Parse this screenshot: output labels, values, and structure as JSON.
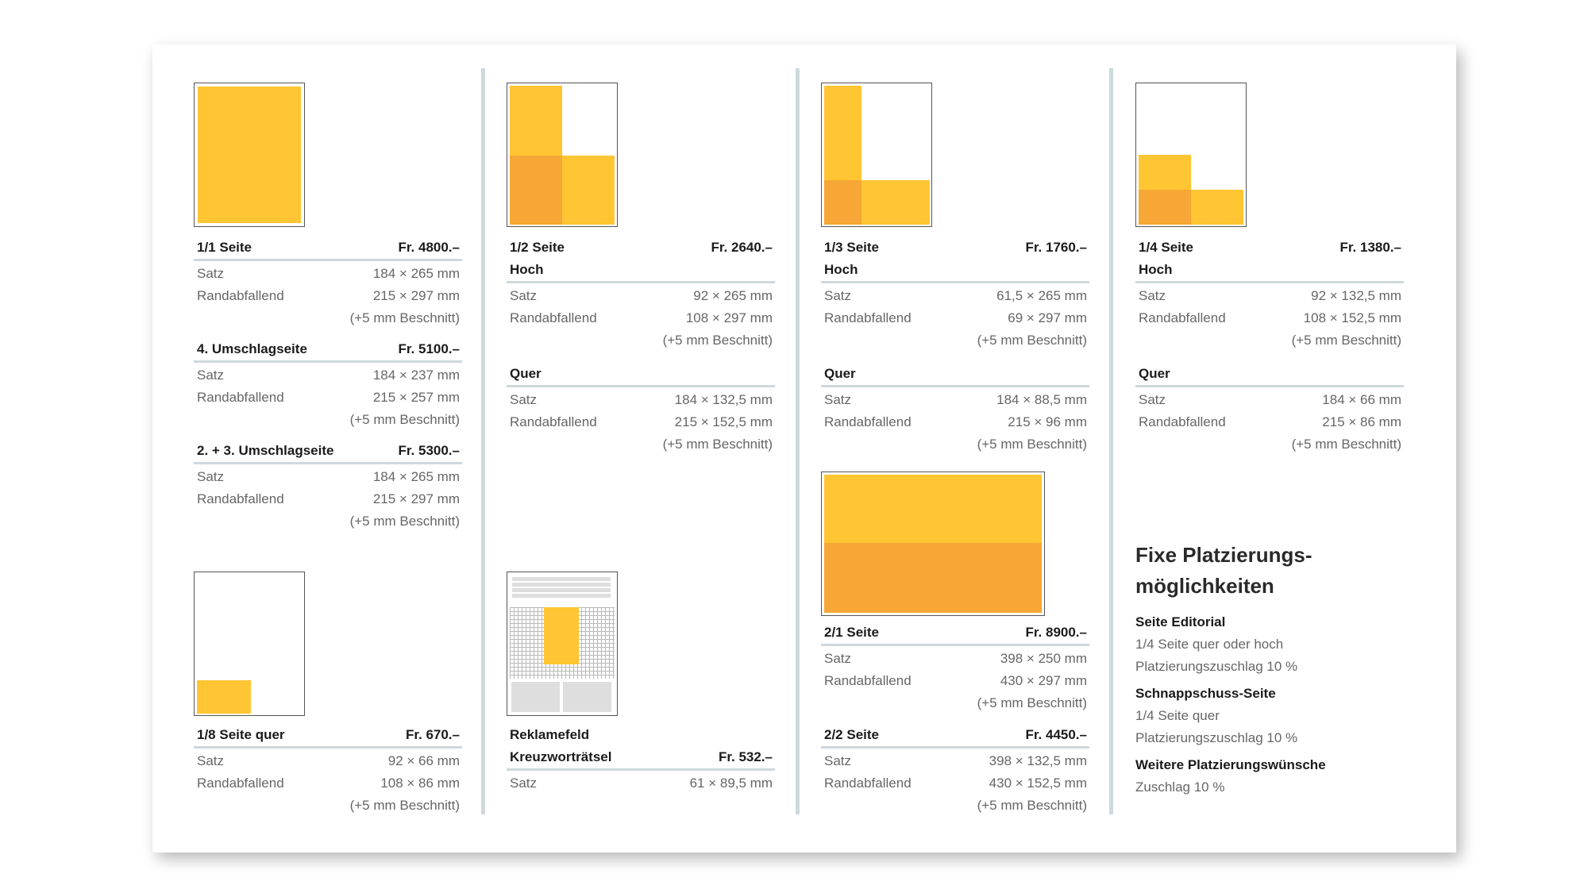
{
  "col1": {
    "full": {
      "title": "1/1 Seite",
      "price": "Fr. 4800.–",
      "rows": [
        {
          "label": "Satz",
          "value": "184 × 265 mm"
        },
        {
          "label": "Randabfallend",
          "value": "215 × 297 mm"
        }
      ],
      "note": "(+5 mm Beschnitt)"
    },
    "back": {
      "title": "4. Umschlagseite",
      "price": "Fr. 5100.–",
      "rows": [
        {
          "label": "Satz",
          "value": "184 × 237 mm"
        },
        {
          "label": "Randabfallend",
          "value": "215 × 257 mm"
        }
      ],
      "note": "(+5 mm Beschnitt)"
    },
    "inner": {
      "title": "2. + 3. Umschlagseite",
      "price": "Fr. 5300.–",
      "rows": [
        {
          "label": "Satz",
          "value": "184 × 265 mm"
        },
        {
          "label": "Randabfallend",
          "value": "215 × 297 mm"
        }
      ],
      "note": "(+5 mm Beschnitt)"
    },
    "eighth": {
      "title": "1/8 Seite quer",
      "price": "Fr. 670.–",
      "rows": [
        {
          "label": "Satz",
          "value": "92 × 66 mm"
        },
        {
          "label": "Randabfallend",
          "value": "108 × 86 mm"
        }
      ],
      "note": "(+5 mm Beschnitt)"
    }
  },
  "col2": {
    "half": {
      "title": "1/2 Seite",
      "price": "Fr. 2640.–",
      "sub1": "Hoch",
      "rows1": [
        {
          "label": "Satz",
          "value": "92 × 265 mm"
        },
        {
          "label": "Randabfallend",
          "value": "108 × 297 mm"
        }
      ],
      "note1": "(+5 mm Beschnitt)",
      "sub2": "Quer",
      "rows2": [
        {
          "label": "Satz",
          "value": "184 × 132,5 mm"
        },
        {
          "label": "Randabfallend",
          "value": "215 × 152,5 mm"
        }
      ],
      "note2": "(+5 mm Beschnitt)"
    },
    "reklame": {
      "title1": "Reklamefeld",
      "title2": "Kreuzworträtsel",
      "price": "Fr. 532.–",
      "rows": [
        {
          "label": "Satz",
          "value": "61 × 89,5 mm"
        }
      ]
    }
  },
  "col3": {
    "third": {
      "title": "1/3 Seite",
      "price": "Fr. 1760.–",
      "sub1": "Hoch",
      "rows1": [
        {
          "label": "Satz",
          "value": "61,5 × 265 mm"
        },
        {
          "label": "Randabfallend",
          "value": "69 × 297 mm"
        }
      ],
      "note1": "(+5 mm Beschnitt)",
      "sub2": "Quer",
      "rows2": [
        {
          "label": "Satz",
          "value": "184 × 88,5 mm"
        },
        {
          "label": "Randabfallend",
          "value": "215 × 96 mm"
        }
      ],
      "note2": "(+5 mm Beschnitt)"
    },
    "double": {
      "title": "2/1 Seite",
      "price": "Fr. 8900.–",
      "rows": [
        {
          "label": "Satz",
          "value": "398 × 250 mm"
        },
        {
          "label": "Randabfallend",
          "value": "430 × 297 mm"
        }
      ],
      "note": "(+5 mm Beschnitt)"
    },
    "doublehalf": {
      "title": "2/2 Seite",
      "price": "Fr. 4450.–",
      "rows": [
        {
          "label": "Satz",
          "value": "398 × 132,5 mm"
        },
        {
          "label": "Randabfallend",
          "value": "430 × 152,5 mm"
        }
      ],
      "note": "(+5 mm Beschnitt)"
    }
  },
  "col4": {
    "quarter": {
      "title": "1/4 Seite",
      "price": "Fr. 1380.–",
      "sub1": "Hoch",
      "rows1": [
        {
          "label": "Satz",
          "value": "92 × 132,5 mm"
        },
        {
          "label": "Randabfallend",
          "value": "108 × 152,5 mm"
        }
      ],
      "note1": "(+5 mm Beschnitt)",
      "sub2": "Quer",
      "rows2": [
        {
          "label": "Satz",
          "value": "184 × 66 mm"
        },
        {
          "label": "Randabfallend",
          "value": "215 × 86 mm"
        }
      ],
      "note2": "(+5 mm Beschnitt)"
    }
  },
  "fixe": {
    "title_line1": "Fixe Platzierungs-",
    "title_line2": "möglichkeiten",
    "items": [
      {
        "heading": "Seite Editorial",
        "lines": [
          "1/4 Seite quer oder hoch",
          "Platzierungszuschlag 10 %"
        ]
      },
      {
        "heading": "Schnappschuss-Seite",
        "lines": [
          "1/4 Seite quer",
          "Platzierungszuschlag 10 %"
        ]
      },
      {
        "heading": "Weitere Platzierungswünsche",
        "lines": [
          "Zuschlag 10 %"
        ]
      }
    ]
  },
  "colors": {
    "yellow": "#ffc532",
    "orange": "#f6a735",
    "rule": "#cdd9dd"
  }
}
